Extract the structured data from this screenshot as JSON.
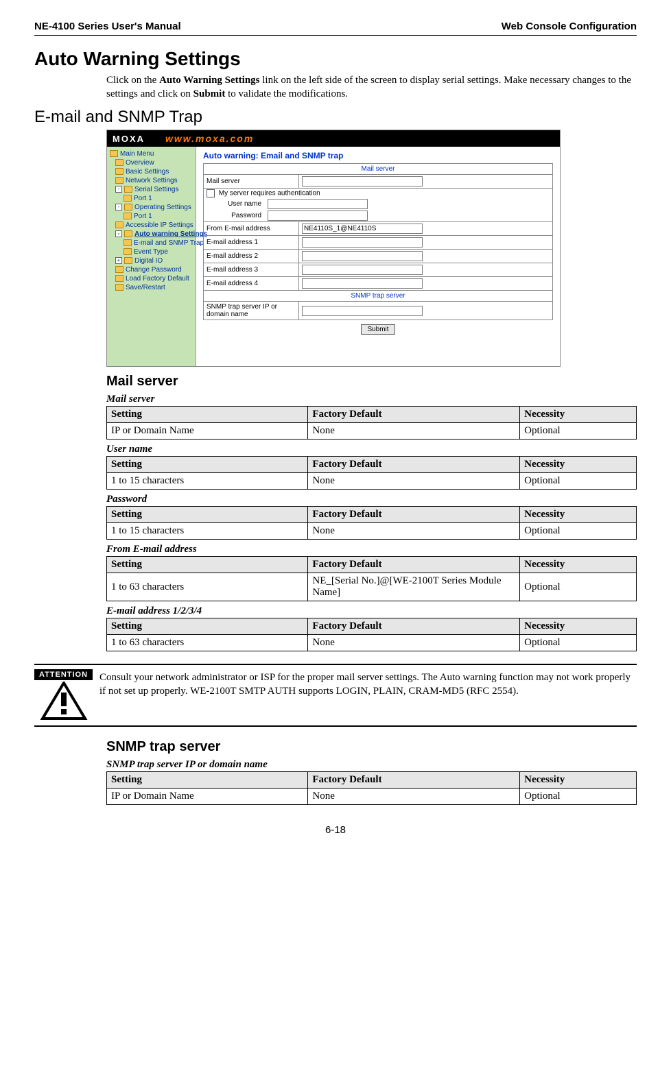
{
  "header": {
    "left": "NE-4100 Series User's Manual",
    "right": "Web Console Configuration"
  },
  "title": "Auto Warning Settings",
  "intro_parts": {
    "p1a": "Click on the ",
    "p1b": "Auto Warning Settings",
    "p1c": " link on the left side of the screen to display serial settings. Make necessary changes to the settings and click on ",
    "p1d": "Submit",
    "p1e": " to validate the modifications."
  },
  "subsection": "E-mail and SNMP Trap",
  "screenshot": {
    "logo": "MOXA",
    "url": "www.moxa.com",
    "main_title": "Auto warning: Email and SNMP trap",
    "sidebar": [
      {
        "lvl": 0,
        "icon": "folder",
        "label": "Main Menu"
      },
      {
        "lvl": 1,
        "icon": "folder",
        "label": "Overview"
      },
      {
        "lvl": 1,
        "icon": "folder",
        "label": "Basic Settings"
      },
      {
        "lvl": 1,
        "icon": "folder",
        "label": "Network Settings"
      },
      {
        "lvl": 1,
        "icon": "box-minus",
        "label": "Serial Settings"
      },
      {
        "lvl": 2,
        "icon": "folder",
        "label": "Port 1"
      },
      {
        "lvl": 1,
        "icon": "box-minus",
        "label": "Operating Settings"
      },
      {
        "lvl": 2,
        "icon": "folder",
        "label": "Port 1"
      },
      {
        "lvl": 1,
        "icon": "folder",
        "label": "Accessible IP Settings"
      },
      {
        "lvl": 1,
        "icon": "box-minus",
        "label": "Auto warning Settings",
        "bold": true
      },
      {
        "lvl": 2,
        "icon": "folder",
        "label": "E-mail and SNMP Trap"
      },
      {
        "lvl": 2,
        "icon": "folder",
        "label": "Event Type"
      },
      {
        "lvl": 1,
        "icon": "box-plus",
        "label": "Digital IO"
      },
      {
        "lvl": 1,
        "icon": "folder",
        "label": "Change Password"
      },
      {
        "lvl": 1,
        "icon": "folder",
        "label": "Load Factory Default"
      },
      {
        "lvl": 1,
        "icon": "folder",
        "label": "Save/Restart"
      }
    ],
    "mail_server_header": "Mail server",
    "rows": {
      "mail_server": "Mail server",
      "auth_checkbox": "My server requires authentication",
      "user_name": "User name",
      "password": "Password",
      "from_email": "From E-mail address",
      "from_email_value": "NE4110S_1@NE4110S",
      "email1": "E-mail address 1",
      "email2": "E-mail address 2",
      "email3": "E-mail address 3",
      "email4": "E-mail address 4"
    },
    "snmp_header": "SNMP trap server",
    "snmp_row": "SNMP trap server IP or domain name",
    "submit": "Submit"
  },
  "group1_title": "Mail server",
  "table_headers": {
    "setting": "Setting",
    "default": "Factory Default",
    "necessity": "Necessity"
  },
  "tables": [
    {
      "title": "Mail server",
      "setting": "IP or Domain Name",
      "default": "None",
      "necessity": "Optional"
    },
    {
      "title": "User name",
      "setting": "1 to 15 characters",
      "default": "None",
      "necessity": "Optional"
    },
    {
      "title": "Password",
      "setting": "1 to 15 characters",
      "default": "None",
      "necessity": "Optional"
    },
    {
      "title": "From E-mail address",
      "setting": "1 to 63 characters",
      "default": "NE_[Serial No.]@[WE-2100T Series Module Name]",
      "necessity": "Optional"
    },
    {
      "title": "E-mail address 1/2/3/4",
      "setting": "1 to 63 characters",
      "default": "None",
      "necessity": "Optional"
    }
  ],
  "attention": {
    "label": "ATTENTION",
    "text": "Consult your network administrator or ISP for the proper mail server settings. The Auto warning function may not work properly if not set up properly. WE-2100T SMTP AUTH supports LOGIN, PLAIN, CRAM-MD5 (RFC 2554)."
  },
  "group2_title": "SNMP trap server",
  "snmp_table": {
    "title": "SNMP trap server IP or domain name",
    "setting": "IP or Domain Name",
    "default": "None",
    "necessity": "Optional"
  },
  "page_number": "6-18"
}
